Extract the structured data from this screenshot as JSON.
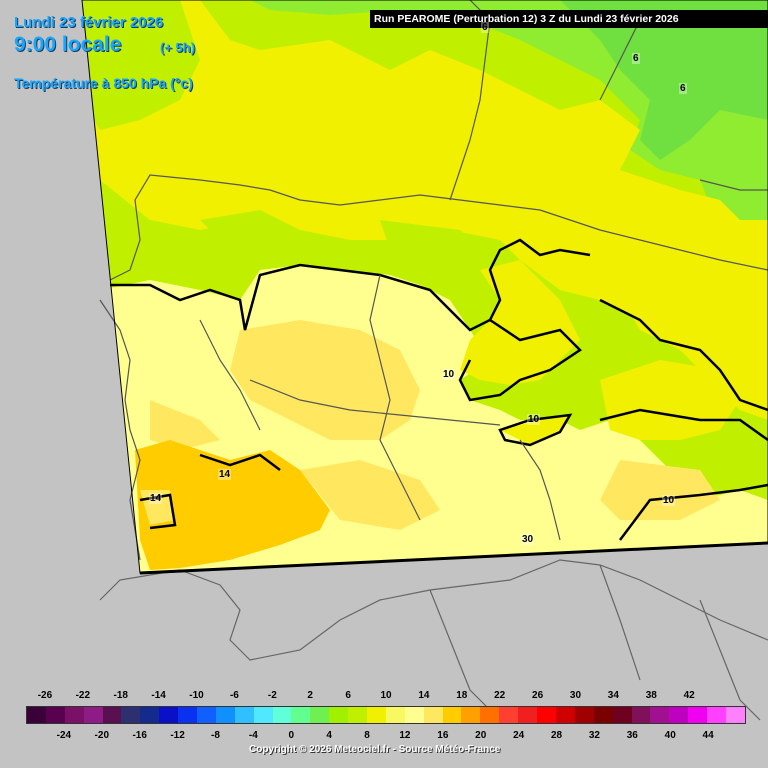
{
  "title": {
    "date": "Lundi 23 février 2026",
    "hour": "9:00 locale",
    "offset": "(+ 5h)",
    "parameter": "Température à 850 hPa (°c)"
  },
  "run_banner": "Run PEAROME (Perturbation 12) 3 Z du Lundi 23 février 2026",
  "contour_labels": [
    "6",
    "6",
    "6",
    "10",
    "10",
    "10",
    "14",
    "14",
    "30"
  ],
  "legend": {
    "top_labels": [
      "-26",
      "-22",
      "-18",
      "-14",
      "-10",
      "-6",
      "-2",
      "2",
      "6",
      "10",
      "14",
      "18",
      "22",
      "26",
      "30",
      "34",
      "38",
      "42"
    ],
    "bottom_labels": [
      "-24",
      "-20",
      "-16",
      "-12",
      "-8",
      "-4",
      "0",
      "4",
      "8",
      "12",
      "16",
      "20",
      "24",
      "28",
      "32",
      "36",
      "40",
      "44"
    ],
    "colors": [
      "#3a0038",
      "#5a0050",
      "#7a1068",
      "#8e1c86",
      "#5a1050",
      "#2c3070",
      "#142a8c",
      "#0a10c8",
      "#0a30f0",
      "#1060ff",
      "#1090ff",
      "#30c0ff",
      "#50e8ff",
      "#60ffd8",
      "#60ff90",
      "#70f050",
      "#a0f000",
      "#c0f000",
      "#f0f000",
      "#f8f860",
      "#ffff90",
      "#ffe860",
      "#ffcc00",
      "#ffa000",
      "#ff7000",
      "#ff4030",
      "#f02020",
      "#ff0000",
      "#d00000",
      "#a00000",
      "#7a0000",
      "#700020",
      "#80105a",
      "#a01090",
      "#c000c0",
      "#f000f0",
      "#ff40ff",
      "#ff80ff"
    ]
  },
  "copyright": "Copyright © 2026 Meteociel.fr - Source Météo-France"
}
